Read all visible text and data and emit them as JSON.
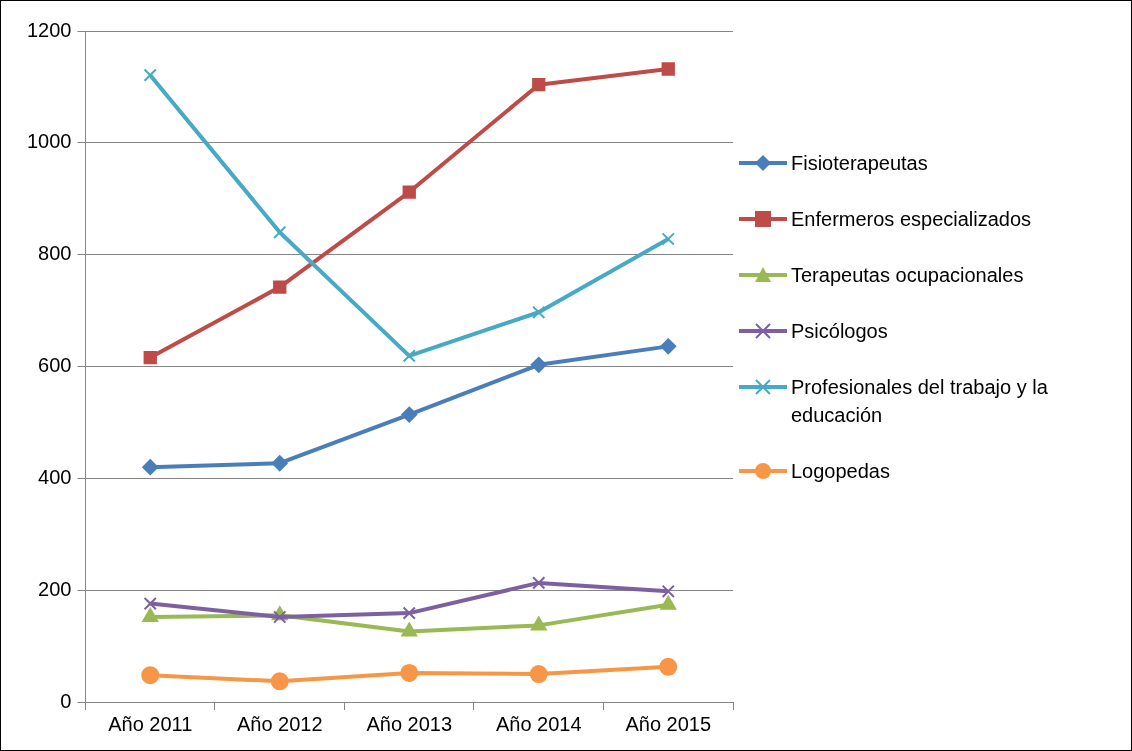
{
  "chart_data": {
    "type": "line",
    "categories": [
      "Año 2011",
      "Año 2012",
      "Año 2013",
      "Año 2014",
      "Año 2015"
    ],
    "ylim": [
      0,
      1200
    ],
    "yticks": [
      0,
      200,
      400,
      600,
      800,
      1000,
      1200
    ],
    "grid": "y",
    "legend": "right",
    "series": [
      {
        "name": "Fisioterapeutas",
        "color": "#4a7ebb",
        "marker": "diamond",
        "values": [
          420,
          427,
          514,
          603,
          636
        ]
      },
      {
        "name": "Enfermeros especializados",
        "color": "#be4b48",
        "marker": "square",
        "values": [
          616,
          742,
          912,
          1104,
          1132
        ]
      },
      {
        "name": "Terapeutas ocupacionales",
        "color": "#98b954",
        "marker": "triangle",
        "values": [
          152,
          155,
          126,
          137,
          174
        ]
      },
      {
        "name": "Psicólogos",
        "color": "#7d60a0",
        "marker": "cross",
        "values": [
          176,
          152,
          159,
          213,
          198
        ]
      },
      {
        "name": "Profesionales del trabajo y la educación",
        "color": "#46aac5",
        "marker": "cross",
        "values": [
          1121,
          840,
          619,
          697,
          828
        ]
      },
      {
        "name": "Logopedas",
        "color": "#f79646",
        "marker": "circle",
        "values": [
          48,
          37,
          52,
          50,
          63
        ]
      }
    ]
  }
}
